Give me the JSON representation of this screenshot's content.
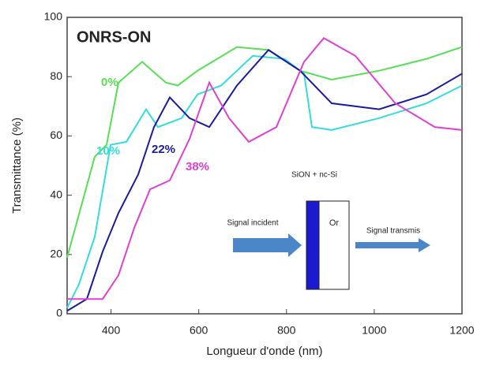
{
  "chart_data": {
    "type": "line",
    "title": "ONRS-ON",
    "x_label": "Longueur d'onde (nm)",
    "y_label": "Transmittance (%)",
    "xlim": [
      300,
      1200
    ],
    "xticks": [
      400,
      600,
      800,
      1000,
      1200
    ],
    "ylim": [
      0,
      100
    ],
    "yticks": [
      0,
      20,
      40,
      60,
      80,
      100
    ],
    "series": [
      {
        "name": "0%",
        "color": "#55e055",
        "x": [
          300,
          363,
          390,
          417,
          471,
          525,
          552,
          597,
          687,
          759,
          831,
          903,
          1011,
          1119,
          1200
        ],
        "values": [
          19,
          53,
          57,
          78,
          85,
          78,
          77,
          82,
          90,
          89,
          82,
          79,
          82,
          86,
          90
        ]
      },
      {
        "name": "10%",
        "color": "#33dddd",
        "x": [
          300,
          327,
          363,
          399,
          435,
          480,
          507,
          561,
          597,
          651,
          723,
          795,
          840,
          858,
          903,
          1011,
          1119,
          1200
        ],
        "values": [
          2,
          10,
          26,
          57,
          58,
          69,
          63,
          66,
          74,
          77,
          87,
          86,
          81,
          63,
          62,
          66,
          71,
          77
        ]
      },
      {
        "name": "22%",
        "color": "#1a1aa0",
        "x": [
          300,
          345,
          381,
          417,
          462,
          498,
          534,
          579,
          624,
          687,
          759,
          831,
          903,
          1011,
          1119,
          1200
        ],
        "values": [
          1,
          5,
          21,
          34,
          47,
          63,
          73,
          66,
          63,
          77,
          89,
          82,
          71,
          69,
          74,
          81
        ]
      },
      {
        "name": "38%",
        "color": "#e040d0",
        "x": [
          300,
          381,
          417,
          453,
          489,
          534,
          579,
          624,
          669,
          714,
          777,
          840,
          885,
          957,
          1048,
          1138,
          1200
        ],
        "values": [
          5,
          5,
          13,
          29,
          42,
          45,
          59,
          78,
          66,
          58,
          63,
          85,
          93,
          87,
          71,
          63,
          62
        ]
      }
    ],
    "annotations": [
      "SiON + nc-Si",
      "Signal incident",
      "Or",
      "Signal transmis"
    ]
  }
}
